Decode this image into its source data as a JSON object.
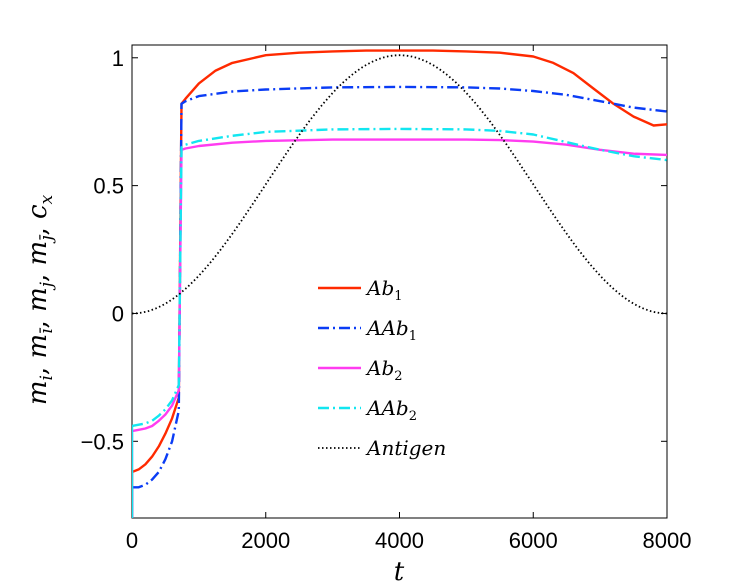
{
  "chart_data": {
    "type": "line",
    "xlabel": "t",
    "ylabel": "m_i, m_ī, m_j, m_j̄, c_x",
    "ylabel_parts": [
      "m",
      "i",
      ", ",
      "m",
      "ī",
      ", ",
      "m",
      "j",
      ", ",
      "m",
      "j̄",
      ", ",
      "c",
      "x"
    ],
    "xlim": [
      0,
      8000
    ],
    "ylim": [
      -0.8,
      1.05
    ],
    "xticks": [
      0,
      2000,
      4000,
      6000,
      8000
    ],
    "xtick_labels": [
      "0",
      "2000",
      "4000",
      "6000",
      "8000"
    ],
    "yticks": [
      -0.5,
      0,
      0.5,
      1
    ],
    "ytick_labels": [
      "−0.5",
      "0",
      "0.5",
      "1"
    ],
    "grid": false,
    "legend_position": "center",
    "series": [
      {
        "name": "Ab1",
        "label_main": "Ab",
        "label_sub": "1",
        "color": "#ff2a00",
        "dash": "solid",
        "x": [
          0,
          100,
          200,
          300,
          400,
          500,
          600,
          700,
          740,
          800,
          1000,
          1250,
          1500,
          2000,
          2500,
          3000,
          3500,
          4000,
          4500,
          5000,
          5500,
          6000,
          6300,
          6600,
          6900,
          7200,
          7500,
          7800,
          8000
        ],
        "y": [
          -0.62,
          -0.61,
          -0.59,
          -0.56,
          -0.52,
          -0.47,
          -0.41,
          -0.33,
          0.82,
          0.84,
          0.9,
          0.95,
          0.98,
          1.01,
          1.02,
          1.025,
          1.028,
          1.028,
          1.028,
          1.025,
          1.02,
          1.005,
          0.98,
          0.94,
          0.88,
          0.82,
          0.77,
          0.735,
          0.74
        ]
      },
      {
        "name": "AAb1",
        "label_main": "AAb",
        "label_sub": "1",
        "color": "#0a3cf5",
        "dash": "dashdot",
        "x": [
          0,
          100,
          200,
          300,
          400,
          500,
          600,
          700,
          740,
          800,
          1000,
          1500,
          2000,
          3000,
          4000,
          5000,
          5500,
          6000,
          6500,
          7000,
          7500,
          8000
        ],
        "y": [
          -0.68,
          -0.68,
          -0.67,
          -0.65,
          -0.62,
          -0.57,
          -0.5,
          -0.38,
          0.82,
          0.83,
          0.85,
          0.868,
          0.876,
          0.884,
          0.886,
          0.884,
          0.88,
          0.87,
          0.855,
          0.83,
          0.805,
          0.79
        ]
      },
      {
        "name": "Ab2",
        "label_main": "Ab",
        "label_sub": "2",
        "color": "#ff3cf0",
        "dash": "solid",
        "x": [
          0,
          100,
          200,
          300,
          400,
          500,
          600,
          700,
          740,
          800,
          1000,
          1500,
          2000,
          3000,
          4000,
          5000,
          5500,
          6000,
          6500,
          7000,
          7500,
          8000
        ],
        "y": [
          -0.46,
          -0.455,
          -0.45,
          -0.44,
          -0.42,
          -0.395,
          -0.36,
          -0.3,
          0.64,
          0.645,
          0.655,
          0.668,
          0.675,
          0.68,
          0.68,
          0.68,
          0.678,
          0.672,
          0.66,
          0.64,
          0.625,
          0.62
        ]
      },
      {
        "name": "AAb2",
        "label_main": "AAb",
        "label_sub": "2",
        "color": "#12e6f0",
        "dash": "dashdot",
        "x": [
          0,
          100,
          200,
          300,
          400,
          500,
          600,
          700,
          740,
          800,
          1000,
          1500,
          2000,
          3000,
          4000,
          5000,
          5500,
          6000,
          6500,
          7000,
          7500,
          8000
        ],
        "y": [
          -0.44,
          -0.435,
          -0.43,
          -0.42,
          -0.4,
          -0.375,
          -0.34,
          -0.28,
          0.65,
          0.66,
          0.675,
          0.695,
          0.71,
          0.72,
          0.722,
          0.72,
          0.714,
          0.7,
          0.67,
          0.64,
          0.615,
          0.6
        ]
      },
      {
        "name": "Antigen",
        "label_main": "Antigen",
        "label_sub": "",
        "color": "#000000",
        "dash": "dotted",
        "func": "0.505*(1-cos(pi*t/4000))",
        "amplitude": 0.505,
        "period": 8000
      }
    ],
    "spike_drop_to": -0.8
  }
}
